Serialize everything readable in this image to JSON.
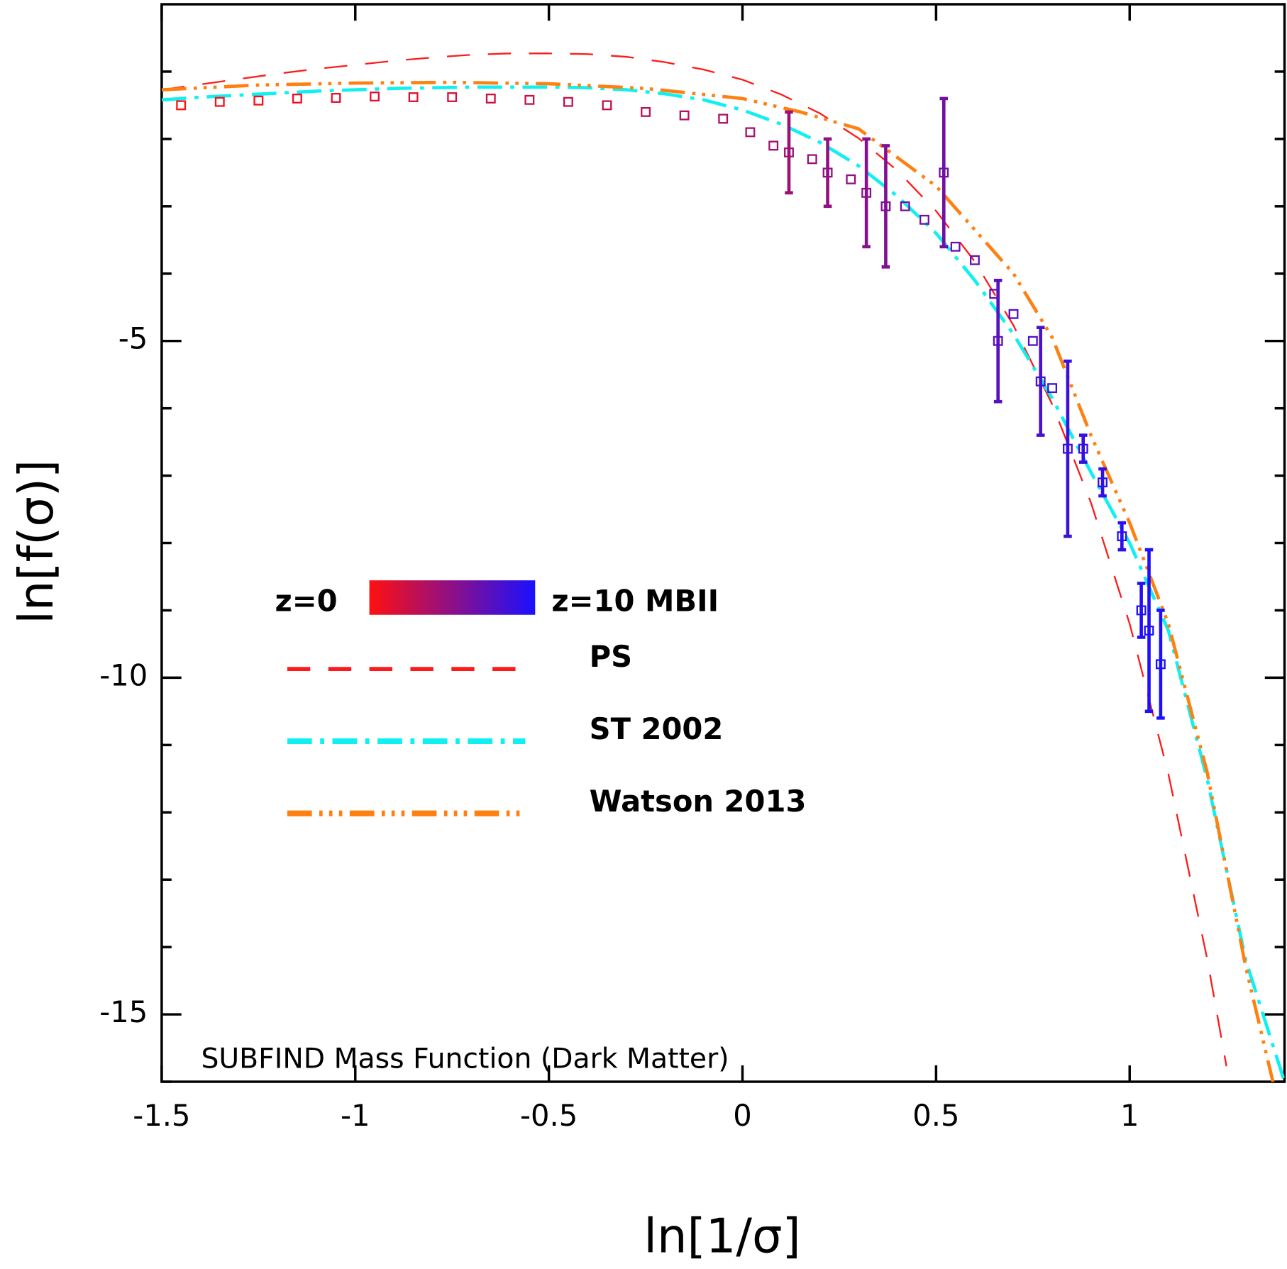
{
  "chart_data": {
    "type": "line",
    "xlabel": "ln[1/σ]",
    "ylabel": "ln[f(σ)]",
    "annotation": "SUBFIND Mass Function (Dark Matter)",
    "xlim": [
      -1.5,
      1.4
    ],
    "ylim": [
      -16,
      0
    ],
    "xticks": [
      -1.5,
      -1,
      -0.5,
      0,
      0.5,
      1
    ],
    "yticks": [
      -15,
      -10,
      -5
    ],
    "y_minor_ticks": [
      -16,
      -14,
      -13,
      -12,
      -11,
      -9,
      -8,
      -7,
      -6,
      -4,
      -3,
      -2,
      -1
    ],
    "colorbar": {
      "low_label": "z=0",
      "high_label": "z=10 MBII",
      "colors": [
        "#ff1010",
        "#1a10ff"
      ]
    },
    "points": {
      "x": [
        -1.45,
        -1.35,
        -1.25,
        -1.15,
        -1.05,
        -0.95,
        -0.85,
        -0.75,
        -0.65,
        -0.55,
        -0.45,
        -0.35,
        -0.25,
        -0.15,
        -0.05,
        0.02,
        0.08,
        0.12,
        0.18,
        0.22,
        0.28,
        0.32,
        0.37,
        0.42,
        0.47,
        0.52,
        0.55,
        0.6,
        0.65,
        0.66,
        0.7,
        0.75,
        0.77,
        0.8,
        0.84,
        0.88,
        0.93,
        0.98,
        1.03,
        1.05,
        1.08
      ],
      "values": [
        -1.5,
        -1.45,
        -1.43,
        -1.4,
        -1.39,
        -1.37,
        -1.38,
        -1.38,
        -1.4,
        -1.42,
        -1.45,
        -1.5,
        -1.6,
        -1.65,
        -1.7,
        -1.9,
        -2.1,
        -2.2,
        -2.3,
        -2.5,
        -2.6,
        -2.8,
        -3.0,
        -3.0,
        -3.2,
        -2.5,
        -3.6,
        -3.8,
        -4.3,
        -5.0,
        -4.6,
        -5.0,
        -5.6,
        -5.7,
        -6.6,
        -6.6,
        -7.1,
        -7.9,
        -9.0,
        -9.3,
        -9.8
      ],
      "errors": [
        null,
        null,
        null,
        null,
        null,
        null,
        null,
        null,
        null,
        null,
        null,
        null,
        null,
        null,
        null,
        null,
        null,
        0.6,
        null,
        0.5,
        null,
        0.8,
        0.9,
        null,
        null,
        1.1,
        null,
        null,
        null,
        0.9,
        null,
        null,
        0.8,
        null,
        1.3,
        0.2,
        0.2,
        0.2,
        0.4,
        1.2,
        0.8
      ]
    },
    "series": [
      {
        "name": "PS",
        "color": "#ff1a1a",
        "dash": "28 22",
        "width": 2,
        "x": [
          -1.5,
          -1.4,
          -1.3,
          -1.2,
          -1.1,
          -1.0,
          -0.9,
          -0.8,
          -0.7,
          -0.6,
          -0.5,
          -0.4,
          -0.3,
          -0.2,
          -0.1,
          0,
          0.1,
          0.2,
          0.3,
          0.4,
          0.5,
          0.6,
          0.7,
          0.8,
          0.9,
          1.0,
          1.1,
          1.2,
          1.25
        ],
        "values": [
          -1.27,
          -1.19,
          -1.11,
          -1.03,
          -0.96,
          -0.9,
          -0.84,
          -0.79,
          -0.75,
          -0.73,
          -0.73,
          -0.74,
          -0.78,
          -0.86,
          -0.97,
          -1.12,
          -1.34,
          -1.62,
          -1.99,
          -2.47,
          -3.07,
          -3.82,
          -4.77,
          -5.94,
          -7.4,
          -9.2,
          -11.43,
          -14.17,
          -15.77
        ]
      },
      {
        "name": "ST 2002",
        "color": "#10f0f0",
        "dash": "30 10 5 10",
        "width": 4,
        "x": [
          -1.5,
          -1.4,
          -1.3,
          -1.2,
          -1.1,
          -1.0,
          -0.9,
          -0.8,
          -0.7,
          -0.6,
          -0.5,
          -0.4,
          -0.3,
          -0.2,
          -0.1,
          0,
          0.1,
          0.2,
          0.3,
          0.4,
          0.5,
          0.6,
          0.7,
          0.8,
          0.9,
          1.0,
          1.1,
          1.2,
          1.3,
          1.4
        ],
        "values": [
          -1.42,
          -1.38,
          -1.35,
          -1.32,
          -1.29,
          -1.27,
          -1.25,
          -1.24,
          -1.23,
          -1.23,
          -1.23,
          -1.24,
          -1.27,
          -1.33,
          -1.42,
          -1.57,
          -1.78,
          -2.05,
          -2.4,
          -2.85,
          -3.4,
          -4.1,
          -4.9,
          -5.85,
          -6.95,
          -8.0,
          -9.3,
          -11.5,
          -14.2,
          -16
        ]
      },
      {
        "name": "Watson 2013",
        "color": "#ff8010",
        "dash": "30 9 4 8 4 8 4 9",
        "width": 4,
        "x": [
          -1.5,
          -1.25,
          -1.0,
          -0.75,
          -0.5,
          -0.25,
          0,
          0.15,
          0.3,
          0.5,
          0.7,
          0.8,
          0.9,
          1.0,
          1.1,
          1.2,
          1.3,
          1.37
        ],
        "values": [
          -1.27,
          -1.2,
          -1.17,
          -1.16,
          -1.18,
          -1.25,
          -1.4,
          -1.6,
          -1.85,
          -2.7,
          -4.0,
          -4.95,
          -6.4,
          -7.7,
          -9.2,
          -11.4,
          -14.3,
          -16
        ]
      }
    ]
  }
}
